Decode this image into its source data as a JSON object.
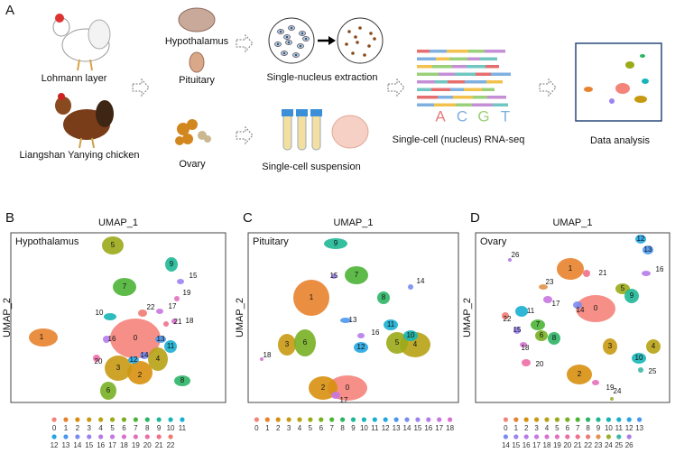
{
  "panel_a": {
    "label": "A",
    "lohmann": "Lohmann layer",
    "liangshan": "Liangshan Yanying chicken",
    "hypothalamus": "Hypothalamus",
    "pituitary": "Pituitary",
    "ovary": "Ovary",
    "nucleus_extraction": "Single-nucleus extraction",
    "cell_suspension": "Single-cell suspension",
    "bases": [
      "A",
      "C",
      "G",
      "T"
    ],
    "sequencing": "Single-cell (nucleus) RNA-seq",
    "analysis": "Data analysis"
  },
  "umap_panels": [
    {
      "label": "B",
      "tissue": "Hypothalamus",
      "x_axis": "UMAP_1",
      "y_axis": "UMAP_2",
      "clusters": [
        "0",
        "1",
        "2",
        "3",
        "4",
        "5",
        "6",
        "7",
        "8",
        "9",
        "10",
        "11",
        "12",
        "13",
        "14",
        "15",
        "16",
        "17",
        "18",
        "19",
        "20",
        "21",
        "22"
      ]
    },
    {
      "label": "C",
      "tissue": "Pituitary",
      "x_axis": "UMAP_1",
      "y_axis": "UMAP_2",
      "clusters": [
        "0",
        "1",
        "2",
        "3",
        "4",
        "5",
        "6",
        "7",
        "8",
        "9",
        "10",
        "11",
        "12",
        "13",
        "14",
        "15",
        "16",
        "17",
        "18"
      ]
    },
    {
      "label": "D",
      "tissue": "Ovary",
      "x_axis": "UMAP_1",
      "y_axis": "UMAP_2",
      "clusters": [
        "0",
        "1",
        "2",
        "3",
        "4",
        "5",
        "6",
        "7",
        "8",
        "9",
        "10",
        "11",
        "12",
        "13",
        "14",
        "15",
        "16",
        "17",
        "18",
        "19",
        "20",
        "21",
        "22",
        "23",
        "24",
        "25",
        "26"
      ]
    }
  ],
  "cluster_colors": [
    "#f4837a",
    "#e8822e",
    "#d88f10",
    "#c89a12",
    "#b8a214",
    "#9aaa18",
    "#78b022",
    "#4cb436",
    "#2db566",
    "#1fb896",
    "#17b5b5",
    "#18afd0",
    "#25a6e2",
    "#4c97ee",
    "#7a8cf2",
    "#9c83f0",
    "#b57bec",
    "#c876e0",
    "#d872cf",
    "#e46fbd",
    "#ec6ea6",
    "#f0708c",
    "#ee7b72",
    "#e0944c",
    "#9ab02a",
    "#3cb7a8",
    "#b07ae6"
  ]
}
